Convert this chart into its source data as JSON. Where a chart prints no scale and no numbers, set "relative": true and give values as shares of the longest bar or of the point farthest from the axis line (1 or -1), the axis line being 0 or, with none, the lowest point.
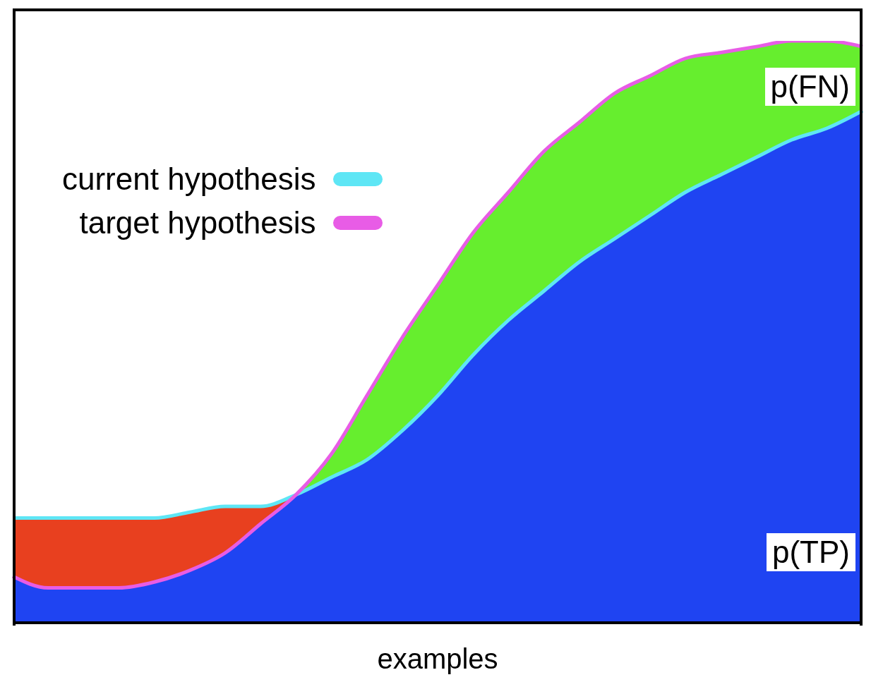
{
  "chart_data": {
    "type": "line",
    "relative": true,
    "xlabel": "examples",
    "legend": "top left",
    "marker": "none",
    "line_style": "solid",
    "grid": false,
    "categories": [
      null,
      null,
      null,
      null,
      null,
      null,
      null,
      null,
      null,
      null,
      null,
      null,
      null,
      null,
      null,
      null,
      null,
      null,
      null,
      null,
      null,
      null,
      null,
      null,
      null
    ],
    "series": [
      {
        "name": "p(FN)",
        "type": "area",
        "color": "#66ee2e",
        "values": [
          null,
          null,
          null,
          null,
          null,
          null,
          null,
          null,
          0.22,
          0.29,
          0.39,
          0.49,
          0.58,
          0.67,
          0.74,
          0.81,
          0.86,
          0.91,
          0.94,
          0.97,
          0.98,
          0.99,
          1.0,
          1.0,
          0.99
        ]
      },
      {
        "type": "area",
        "color": "#e8401f",
        "values": [
          0.18,
          0.18,
          0.18,
          0.18,
          0.18,
          0.19,
          0.2,
          0.2,
          0.22,
          null,
          null,
          null,
          null,
          null,
          null,
          null,
          null,
          null,
          null,
          null,
          null,
          null,
          null,
          null,
          null
        ]
      },
      {
        "name": "p(TP)",
        "type": "area",
        "color": "#1f44f2",
        "values": [
          0.08,
          0.06,
          0.06,
          0.06,
          0.07,
          0.09,
          0.12,
          0.17,
          0.22,
          0.25,
          0.28,
          0.33,
          0.39,
          0.46,
          0.52,
          0.57,
          0.62,
          0.66,
          0.7,
          0.74,
          0.77,
          0.8,
          0.83,
          0.85,
          0.88
        ]
      },
      {
        "name": "current hypothesis",
        "color": "#5ee6f5",
        "values": [
          0.18,
          0.18,
          0.18,
          0.18,
          0.18,
          0.19,
          0.2,
          0.2,
          0.22,
          0.25,
          0.28,
          0.33,
          0.39,
          0.46,
          0.52,
          0.57,
          0.62,
          0.66,
          0.7,
          0.74,
          0.77,
          0.8,
          0.83,
          0.85,
          0.88
        ]
      },
      {
        "name": "target hypothesis",
        "color": "#e85ce6",
        "values": [
          0.08,
          0.06,
          0.06,
          0.06,
          0.07,
          0.09,
          0.12,
          0.17,
          0.22,
          0.29,
          0.39,
          0.49,
          0.58,
          0.67,
          0.74,
          0.81,
          0.86,
          0.91,
          0.94,
          0.97,
          0.98,
          0.99,
          1.0,
          1.0,
          0.99
        ]
      }
    ]
  }
}
